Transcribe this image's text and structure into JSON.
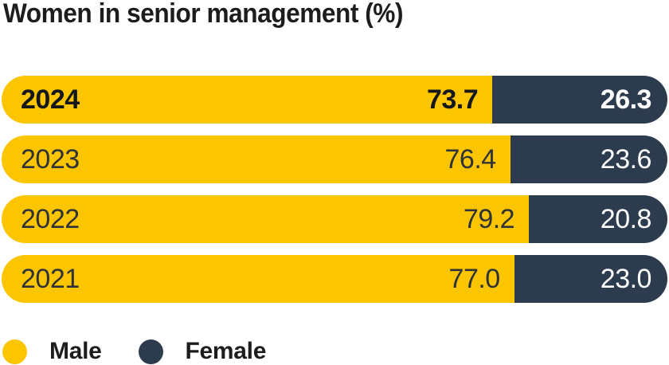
{
  "title": "Women in senior management (%)",
  "colors": {
    "male": "#FCC502",
    "female": "#2C3C4E",
    "title_text": "#1D1D1B",
    "light_text": "#2F3237",
    "dark_text": "#15181B",
    "female_text": "#FFFFFF",
    "background": "#FFFFFF"
  },
  "chart_data": {
    "type": "bar",
    "orientation": "horizontal-stacked",
    "title": "Women in senior management (%)",
    "categories": [
      "2024",
      "2023",
      "2022",
      "2021"
    ],
    "series": [
      {
        "name": "Male",
        "color": "#FCC502",
        "values": [
          73.7,
          76.4,
          79.2,
          77.0
        ]
      },
      {
        "name": "Female",
        "color": "#2C3C4E",
        "values": [
          26.3,
          23.6,
          20.8,
          23.0
        ]
      }
    ],
    "value_labels": "inside-end, one decimal place",
    "xlim": [
      0,
      100
    ],
    "grid": false,
    "axes_shown": false,
    "highlight_category": "2024",
    "legend_position": "bottom-left"
  },
  "rows": [
    {
      "year": "2024",
      "male": "73.7",
      "female": "26.3",
      "emphasis": true
    },
    {
      "year": "2023",
      "male": "76.4",
      "female": "23.6",
      "emphasis": false
    },
    {
      "year": "2022",
      "male": "79.2",
      "female": "20.8",
      "emphasis": false
    },
    {
      "year": "2021",
      "male": "77.0",
      "female": "23.0",
      "emphasis": false
    }
  ],
  "legend": {
    "items": [
      {
        "label": "Male"
      },
      {
        "label": "Female"
      }
    ]
  }
}
